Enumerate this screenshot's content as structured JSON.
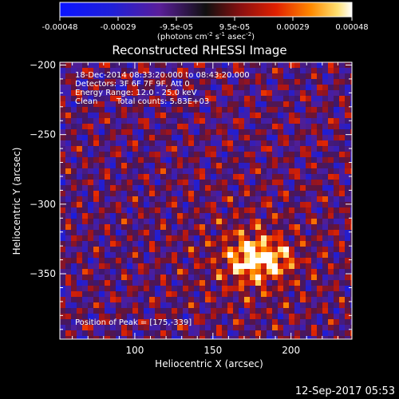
{
  "colorbar": {
    "tick_labels": [
      "-0.00048",
      "-0.00029",
      "-9.5e-05",
      "9.5e-05",
      "0.00029",
      "0.00048"
    ],
    "unit_label": {
      "prefix": "(photons cm",
      "exp1": "-2",
      "s": " s",
      "exp2": "-1",
      "asec": " asec",
      "exp3": "-2",
      "suffix": ")"
    }
  },
  "title": "Reconstructed RHESSI Image",
  "annotations": {
    "time_range": "18-Dec-2014 08:33:20.000 to 08:43:20.000",
    "detectors": "Detectors: 3F 6F 7F 9F, Att 0",
    "energy_range": "Energy Range: 12.0 - 25.0 keV",
    "method": "Clean",
    "total_counts": "Total counts: 5.83E+03",
    "peak": "Position of Peak = [175,-339]"
  },
  "axes": {
    "x_label": "Heliocentric X (arcsec)",
    "y_label": "Heliocentric Y (arcsec)",
    "x_range": [
      52,
      239
    ],
    "y_range": [
      -397,
      -198
    ],
    "x_ticks": [
      {
        "value": 100,
        "label": "100"
      },
      {
        "value": 150,
        "label": "150"
      },
      {
        "value": 200,
        "label": "200"
      }
    ],
    "y_ticks": [
      {
        "value": -200,
        "label": "−200"
      },
      {
        "value": -250,
        "label": "−250"
      },
      {
        "value": -300,
        "label": "−300"
      },
      {
        "value": -350,
        "label": "−350"
      }
    ]
  },
  "image": {
    "peak_position": [
      175,
      -339
    ],
    "secondary_blob_center": [
      192,
      -340
    ]
  },
  "timestamp": "12-Sep-2017 05:53"
}
